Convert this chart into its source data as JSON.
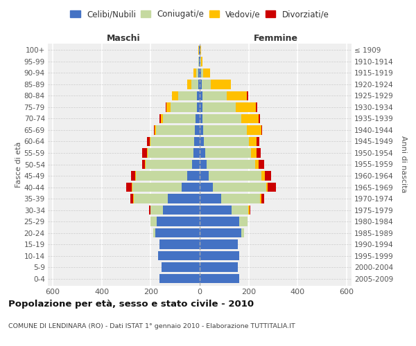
{
  "age_groups": [
    "0-4",
    "5-9",
    "10-14",
    "15-19",
    "20-24",
    "25-29",
    "30-34",
    "35-39",
    "40-44",
    "45-49",
    "50-54",
    "55-59",
    "60-64",
    "65-69",
    "70-74",
    "75-79",
    "80-84",
    "85-89",
    "90-94",
    "95-99",
    "100+"
  ],
  "birth_years": [
    "2005-2009",
    "2000-2004",
    "1995-1999",
    "1990-1994",
    "1985-1989",
    "1980-1984",
    "1975-1979",
    "1970-1974",
    "1965-1969",
    "1960-1964",
    "1955-1959",
    "1950-1954",
    "1945-1949",
    "1940-1944",
    "1935-1939",
    "1930-1934",
    "1925-1929",
    "1920-1924",
    "1915-1919",
    "1910-1914",
    "≤ 1909"
  ],
  "males_celibe": [
    165,
    155,
    170,
    165,
    180,
    175,
    150,
    130,
    75,
    50,
    30,
    25,
    22,
    20,
    18,
    12,
    10,
    5,
    5,
    2,
    2
  ],
  "males_coniugato": [
    0,
    0,
    0,
    0,
    10,
    25,
    50,
    140,
    200,
    210,
    192,
    188,
    178,
    158,
    132,
    108,
    78,
    28,
    10,
    3,
    2
  ],
  "males_vedovo": [
    0,
    0,
    0,
    0,
    0,
    0,
    2,
    2,
    2,
    2,
    2,
    3,
    4,
    5,
    8,
    15,
    25,
    18,
    10,
    2,
    1
  ],
  "males_divorziato": [
    0,
    0,
    0,
    0,
    0,
    0,
    5,
    12,
    22,
    18,
    10,
    18,
    10,
    5,
    5,
    5,
    0,
    0,
    0,
    0,
    0
  ],
  "females_nubile": [
    162,
    155,
    160,
    155,
    170,
    162,
    130,
    88,
    55,
    38,
    28,
    22,
    18,
    15,
    12,
    10,
    10,
    8,
    5,
    2,
    2
  ],
  "females_coniugata": [
    0,
    0,
    0,
    0,
    10,
    32,
    68,
    158,
    218,
    215,
    198,
    188,
    182,
    178,
    158,
    138,
    100,
    38,
    10,
    3,
    2
  ],
  "females_vedova": [
    0,
    0,
    0,
    0,
    0,
    2,
    5,
    5,
    5,
    12,
    15,
    22,
    32,
    58,
    72,
    82,
    82,
    82,
    28,
    5,
    3
  ],
  "females_divorziata": [
    0,
    0,
    0,
    0,
    0,
    0,
    5,
    12,
    32,
    28,
    22,
    18,
    12,
    5,
    5,
    5,
    5,
    0,
    0,
    0,
    0
  ],
  "color_celibe": "#4472c4",
  "color_coniugato": "#c5d9a0",
  "color_vedovo": "#ffc000",
  "color_divorziato": "#cc0000",
  "xlim": 620,
  "title": "Popolazione per età, sesso e stato civile - 2010",
  "subtitle": "COMUNE DI LENDINARA (RO) - Dati ISTAT 1° gennaio 2010 - Elaborazione TUTTITALIA.IT",
  "ylabel_left": "Fasce di età",
  "ylabel_right": "Anni di nascita",
  "legend_labels": [
    "Celibi/Nubili",
    "Coniugati/e",
    "Vedovi/e",
    "Divorziati/e"
  ],
  "bg_color": "#efefef"
}
